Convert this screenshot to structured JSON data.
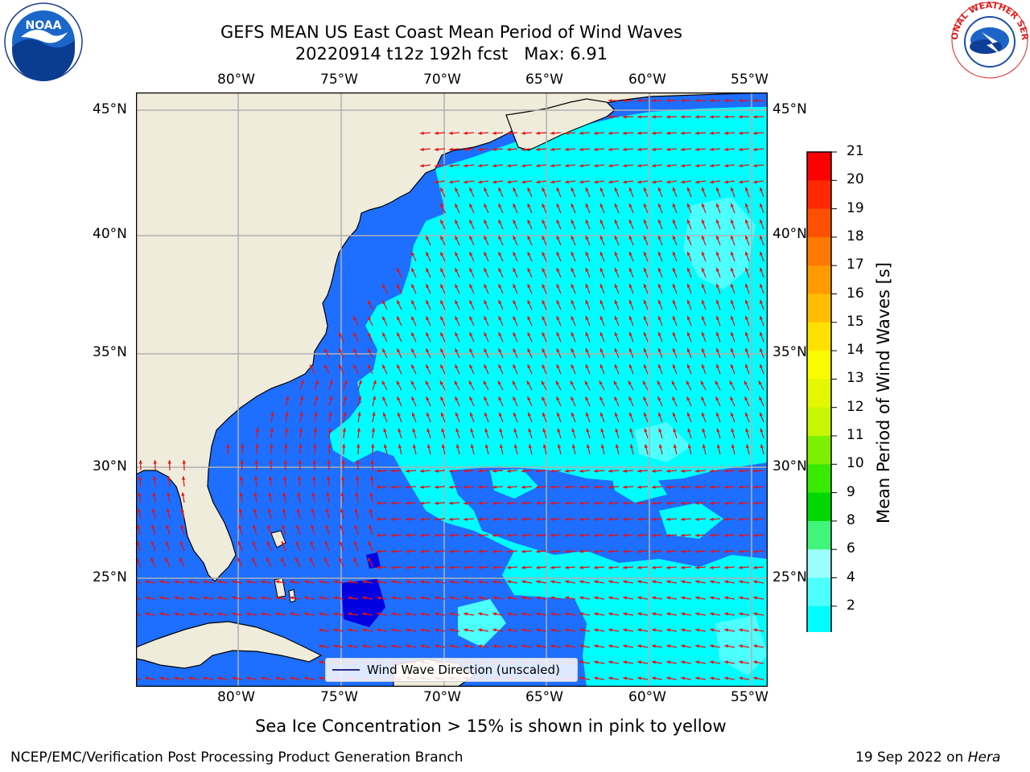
{
  "header": {
    "title_line1": "GEFS MEAN US East Coast Mean Period of Wind Waves",
    "title_line2": "20220914 t12z 192h fcst   Max: 6.91"
  },
  "logos": {
    "left": "NOAA",
    "right_text": "NATIONAL WEATHER SERVICE"
  },
  "map": {
    "lon_labels": [
      "80°W",
      "75°W",
      "70°W",
      "65°W",
      "60°W",
      "55°W"
    ],
    "lat_labels": [
      "45°N",
      "40°N",
      "35°N",
      "30°N",
      "25°N"
    ],
    "legend_label": "Wind Wave Direction (unscaled)",
    "colors": {
      "land": "#efecdc",
      "sea_2_4": "#1e6eff",
      "sea_4_6": "#00fdfe",
      "sea_6_8": "#4cfefe",
      "below_2": "#0000e0",
      "arrows": "#e81010",
      "grid": "#b0b0b0"
    }
  },
  "colorbar": {
    "label": "Mean Period of Wind Waves [s]",
    "ticks": [
      "21",
      "20",
      "19",
      "18",
      "17",
      "16",
      "15",
      "14",
      "13",
      "12",
      "11",
      "10",
      "9",
      "8",
      "6",
      "4",
      "2"
    ],
    "colors": [
      "#ff0000",
      "#ff2800",
      "#ff5000",
      "#ff7800",
      "#ff9b00",
      "#ffbd00",
      "#ffe100",
      "#fbfb00",
      "#e3f700",
      "#c8f500",
      "#7df000",
      "#3aea00",
      "#00d800",
      "#40f57a",
      "#9cfdfd",
      "#4cfefe",
      "#00fdfe",
      "#1e6eff"
    ],
    "extend_color": "#0000ff"
  },
  "notes": {
    "sea_ice": "Sea Ice Concentration > 15% is shown in pink to yellow"
  },
  "footer": {
    "left": "NCEP/EMC/Verification Post Processing Product Generation Branch",
    "right_prefix": "19 Sep 2022 on ",
    "right_host": "Hera"
  }
}
